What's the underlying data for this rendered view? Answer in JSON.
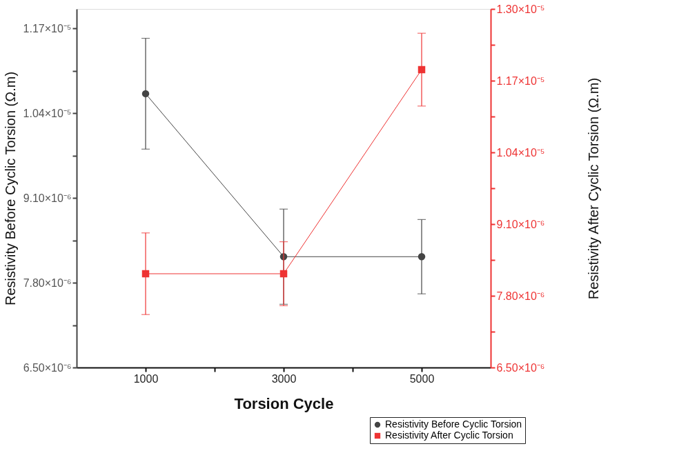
{
  "chart_data": {
    "type": "line",
    "xlabel": "Torsion Cycle",
    "ylabel": "Resistivity Before Cyclic Torsion (Ω.m)",
    "y2label": "Resistivity After Cyclic Torsion (Ω.m)",
    "x": [
      1000,
      3000,
      5000
    ],
    "series": [
      {
        "name": "Resistivity Before Cyclic Torsion",
        "color": "#444444",
        "marker": "circle",
        "values": [
          1.07e-05,
          8.2e-06,
          8.2e-06
        ],
        "errors": [
          8.5e-07,
          7.3e-07,
          5.7e-07
        ]
      },
      {
        "name": "Resistivity After Cyclic Torsion",
        "color": "#ee3333",
        "marker": "square",
        "axis": "y2",
        "values": [
          8.2e-06,
          8.2e-06,
          1.19e-05
        ],
        "errors": [
          7.4e-07,
          5.8e-07,
          6.6e-07
        ]
      }
    ],
    "xlim": [
      0,
      6000
    ],
    "xticks": [
      1000,
      {
        "value": 2000,
        "label": null
      },
      3000,
      {
        "value": 4000,
        "label": null
      },
      5000
    ],
    "ylim": [
      6.5e-06,
      1.2e-05
    ],
    "yticks": [
      {
        "value": 6.5e-06,
        "label": "6.50×10⁻⁶"
      },
      {
        "value": 7.15e-06,
        "label": null
      },
      {
        "value": 7.8e-06,
        "label": "7.80×10⁻⁶"
      },
      {
        "value": 8.45e-06,
        "label": null
      },
      {
        "value": 9.1e-06,
        "label": "9.10×10⁻⁶"
      },
      {
        "value": 9.75e-06,
        "label": null
      },
      {
        "value": 1.04e-05,
        "label": "1.04×10⁻⁵"
      },
      {
        "value": 1.105e-05,
        "label": null
      },
      {
        "value": 1.17e-05,
        "label": "1.17×10⁻⁵"
      }
    ],
    "y2lim": [
      6.5e-06,
      1.3e-05
    ],
    "y2ticks": [
      {
        "value": 6.5e-06,
        "label": "6.50×10⁻⁶"
      },
      {
        "value": 7.15e-06,
        "label": null
      },
      {
        "value": 7.8e-06,
        "label": "7.80×10⁻⁶"
      },
      {
        "value": 8.45e-06,
        "label": null
      },
      {
        "value": 9.1e-06,
        "label": "9.10×10⁻⁶"
      },
      {
        "value": 9.75e-06,
        "label": null
      },
      {
        "value": 1.04e-05,
        "label": "1.04×10⁻⁵"
      },
      {
        "value": 1.105e-05,
        "label": null
      },
      {
        "value": 1.17e-05,
        "label": "1.17×10⁻⁵"
      },
      {
        "value": 1.235e-05,
        "label": null
      },
      {
        "value": 1.3e-05,
        "label": "1.30×10⁻⁵"
      }
    ],
    "grid": false,
    "legend": "bottom right",
    "line_style": "solid"
  }
}
